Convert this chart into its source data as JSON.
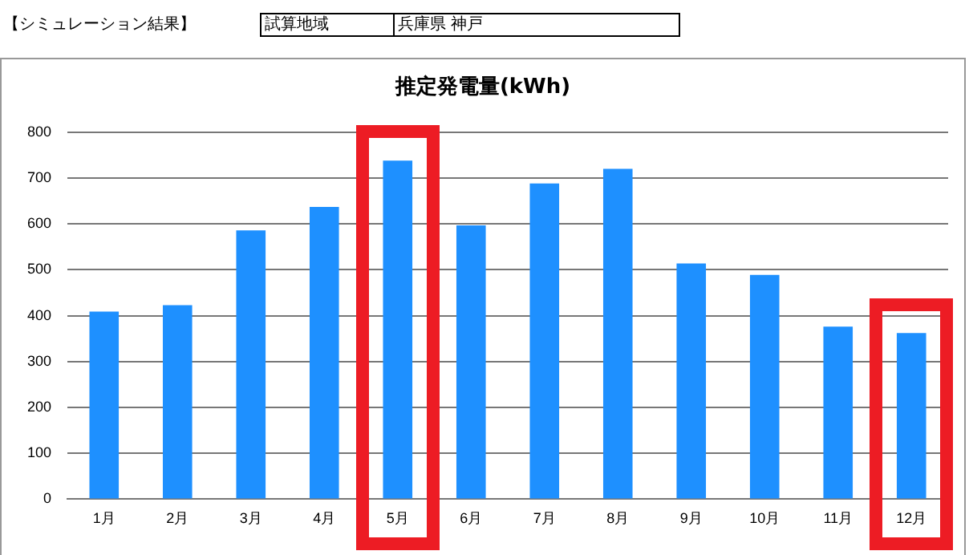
{
  "chart_data": {
    "type": "bar",
    "title": "推定発電量(kWh)",
    "annotations": [
      "【シミュレーション結果】",
      "試算地域",
      "兵庫県 神戸"
    ],
    "categories": [
      "1月",
      "2月",
      "3月",
      "4月",
      "5月",
      "6月",
      "7月",
      "8月",
      "9月",
      "10月",
      "11月",
      "12月"
    ],
    "values": [
      409,
      423,
      586,
      637,
      738,
      597,
      688,
      720,
      514,
      489,
      376,
      362
    ],
    "color": "#1e90ff",
    "ylim": [
      0,
      800
    ],
    "yticks": [
      0,
      100,
      200,
      300,
      400,
      500,
      600,
      700,
      800
    ],
    "grid": "y",
    "legend": false
  }
}
